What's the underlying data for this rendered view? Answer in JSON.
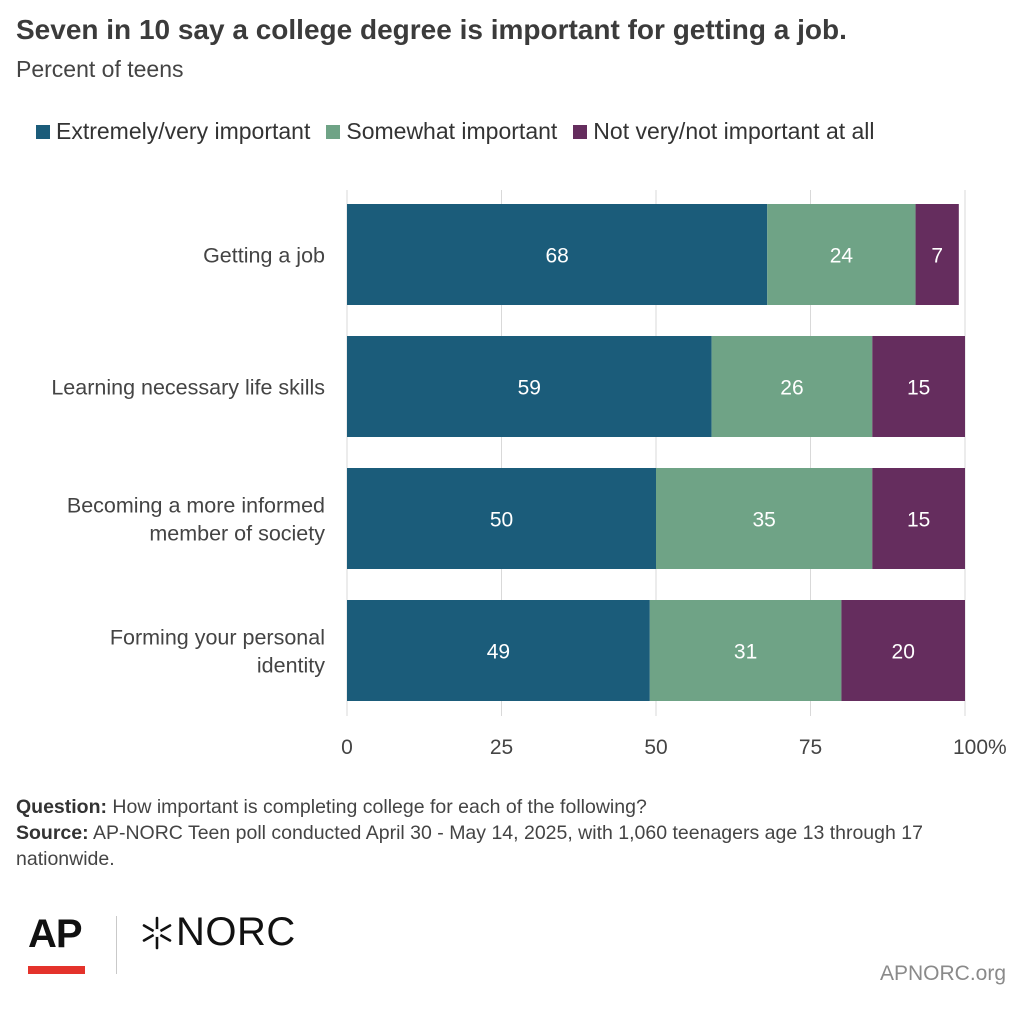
{
  "header": {
    "title": "Seven in 10 say a college degree is important for getting a job.",
    "subtitle": "Percent of teens"
  },
  "chart_data": {
    "type": "bar",
    "orientation": "horizontal",
    "stacked": true,
    "categories": [
      [
        "Getting a job"
      ],
      [
        "Learning necessary life skills"
      ],
      [
        "Becoming a more informed",
        "member of society"
      ],
      [
        "Forming your personal",
        "identity"
      ]
    ],
    "series": [
      {
        "name": "Extremely/very important",
        "color": "#1b5c7a",
        "values": [
          68,
          59,
          50,
          49
        ]
      },
      {
        "name": "Somewhat important",
        "color": "#6fa386",
        "values": [
          24,
          26,
          35,
          31
        ]
      },
      {
        "name": "Not very/not important at all",
        "color": "#652d5e",
        "values": [
          7,
          15,
          15,
          20
        ]
      }
    ],
    "xlim": [
      0,
      100
    ],
    "xticks": [
      "0",
      "25",
      "50",
      "75",
      "100%"
    ],
    "xtick_values": [
      0,
      25,
      50,
      75,
      100
    ],
    "grid": true,
    "legend_position": "top"
  },
  "footer": {
    "question_label": "Question:",
    "question_text": " How important is completing college for each of the following?",
    "source_label": "Source:",
    "source_text": " AP-NORC Teen poll conducted April 30 - May 14, 2025, with 1,060 teenagers age 13 through 17 nationwide."
  },
  "logos": {
    "ap": "AP",
    "norc": "NORC",
    "site": "APNORC.org"
  }
}
